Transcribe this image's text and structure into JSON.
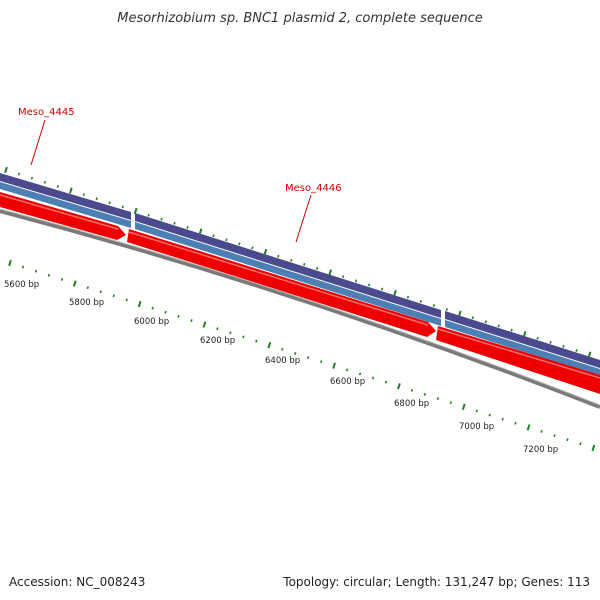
{
  "title": "Mesorhizobium sp. BNC1 plasmid 2, complete sequence",
  "genes": [
    {
      "label": "Meso_4445"
    },
    {
      "label": "Meso_4446"
    }
  ],
  "bp_ticks": [
    "5600 bp",
    "5800 bp",
    "6000 bp",
    "6200 bp",
    "6400 bp",
    "6600 bp",
    "6800 bp",
    "7000 bp",
    "7200 bp"
  ],
  "footer": {
    "accession": "Accession: NC_008243",
    "topology": "Topology: circular; Length: 131,247 bp; Genes: 113"
  },
  "colors": {
    "label": "#cc0000",
    "track_purple": "#4b4a8e",
    "track_blue": "#4d7fb5",
    "gene_red": "#ee0000",
    "backbone": "#7a7a7a",
    "ticks": "#1f7f1f"
  }
}
